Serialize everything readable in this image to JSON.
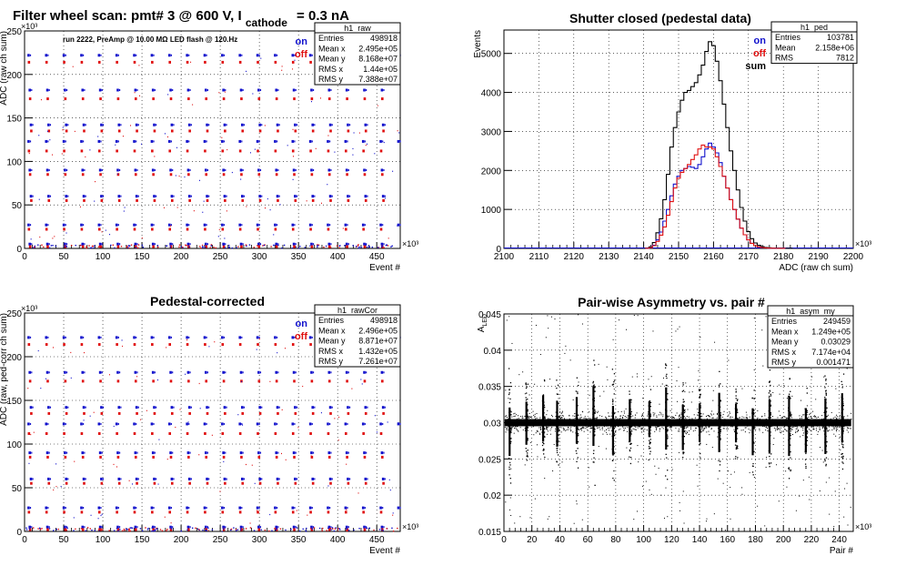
{
  "page": {
    "main_title_prefix": "Filter wheel scan: pmt#   3 @   600 V, I",
    "main_title_sub": "cathode",
    "main_title_suffix": "= 0.3 nA"
  },
  "chart_data": [
    {
      "id": "raw",
      "type": "scatter",
      "title": "",
      "annotation": "run 2222, PreAmp @ 10.00 MΩ LED flash @  120.Hz",
      "xlabel": "Event #",
      "ylabel": "ADC (raw ch sum)",
      "xlim": [
        0,
        480
      ],
      "ylim": [
        0,
        250
      ],
      "x_exponent": "×10³",
      "y_exponent": "×10³",
      "xticks": [
        0,
        50,
        100,
        150,
        200,
        250,
        300,
        350,
        400,
        450
      ],
      "yticks": [
        0,
        50,
        100,
        150,
        200,
        250
      ],
      "grid": true,
      "legend": [
        {
          "label": "on",
          "color": "#1010cc"
        },
        {
          "label": "off",
          "color": "#e01010"
        }
      ],
      "stats": {
        "name": "h1_raw",
        "rows": [
          [
            "Entries",
            "498918"
          ],
          [
            "Mean x",
            "2.495e+05"
          ],
          [
            "Mean y",
            "8.168e+07"
          ],
          [
            "RMS x",
            "1.44e+05"
          ],
          [
            "RMS y",
            "7.388e+07"
          ]
        ]
      },
      "levels_on": [
        222,
        182,
        142,
        123,
        90,
        60,
        27,
        5
      ],
      "levels_off": [
        214,
        172,
        135,
        112,
        85,
        55,
        22,
        2
      ],
      "period": 22.5,
      "start": 3
    },
    {
      "id": "ped",
      "type": "line",
      "title": "Shutter closed (pedestal data)",
      "xlabel": "ADC (raw ch sum)",
      "ylabel": "Events",
      "xlim": [
        2100,
        2200
      ],
      "ylim": [
        0,
        5600
      ],
      "x_exponent": "×10³",
      "xticks": [
        2100,
        2110,
        2120,
        2130,
        2140,
        2150,
        2160,
        2170,
        2180,
        2190,
        2200
      ],
      "yticks": [
        0,
        1000,
        2000,
        3000,
        4000,
        5000
      ],
      "grid": true,
      "legend": [
        {
          "label": "on",
          "color": "#1010cc"
        },
        {
          "label": "off",
          "color": "#e01010"
        },
        {
          "label": "sum",
          "color": "#000000"
        }
      ],
      "stats": {
        "name": "h1_ped",
        "rows": [
          [
            "Entries",
            "103781"
          ],
          [
            "Mean",
            "2.158e+06"
          ],
          [
            "RMS",
            "7812"
          ]
        ]
      },
      "series": [
        {
          "name": "sum",
          "color": "#000000",
          "x": [
            2141,
            2142,
            2143,
            2144,
            2145,
            2146,
            2147,
            2148,
            2149,
            2150,
            2151,
            2152,
            2153,
            2154,
            2155,
            2156,
            2157,
            2158,
            2159,
            2160,
            2161,
            2162,
            2163,
            2164,
            2165,
            2166,
            2167,
            2168,
            2169,
            2170,
            2171,
            2172,
            2173,
            2174,
            2175,
            2176,
            2177,
            2178,
            2179,
            2180,
            2181,
            2182
          ],
          "values": [
            5,
            40,
            150,
            400,
            760,
            1250,
            1900,
            2600,
            3100,
            3500,
            3800,
            4000,
            4050,
            4150,
            4250,
            4450,
            4700,
            5050,
            5300,
            5200,
            4800,
            4300,
            3700,
            3100,
            2500,
            2000,
            1500,
            1050,
            700,
            430,
            250,
            140,
            80,
            45,
            25,
            15,
            10,
            6,
            4,
            3,
            2,
            1
          ]
        },
        {
          "name": "on",
          "color": "#1010cc",
          "x": [
            2141,
            2142,
            2143,
            2144,
            2145,
            2146,
            2147,
            2148,
            2149,
            2150,
            2151,
            2152,
            2153,
            2154,
            2155,
            2156,
            2157,
            2158,
            2159,
            2160,
            2161,
            2162,
            2163,
            2164,
            2165,
            2166,
            2167,
            2168,
            2169,
            2170,
            2171,
            2172,
            2173,
            2174,
            2175,
            2176,
            2177,
            2178,
            2179,
            2180
          ],
          "values": [
            2,
            20,
            80,
            220,
            420,
            700,
            1000,
            1350,
            1650,
            1850,
            2000,
            2050,
            2100,
            2080,
            2050,
            2150,
            2350,
            2550,
            2700,
            2600,
            2450,
            2200,
            1850,
            1550,
            1250,
            1000,
            750,
            520,
            350,
            220,
            130,
            70,
            40,
            22,
            12,
            8,
            5,
            3,
            2,
            1
          ]
        },
        {
          "name": "off",
          "color": "#e01010",
          "x": [
            2141,
            2142,
            2143,
            2144,
            2145,
            2146,
            2147,
            2148,
            2149,
            2150,
            2151,
            2152,
            2153,
            2154,
            2155,
            2156,
            2157,
            2158,
            2159,
            2160,
            2161,
            2162,
            2163,
            2164,
            2165,
            2166,
            2167,
            2168,
            2169,
            2170,
            2171,
            2172,
            2173,
            2174,
            2175,
            2176,
            2177,
            2178,
            2179,
            2180
          ],
          "values": [
            3,
            20,
            70,
            180,
            340,
            550,
            850,
            1200,
            1550,
            1800,
            1950,
            2050,
            2150,
            2280,
            2400,
            2550,
            2650,
            2600,
            2600,
            2550,
            2350,
            2100,
            1850,
            1550,
            1250,
            1000,
            750,
            520,
            350,
            220,
            130,
            70,
            40,
            22,
            12,
            8,
            5,
            3,
            2,
            1
          ]
        }
      ]
    },
    {
      "id": "rawcor",
      "type": "scatter",
      "title": "Pedestal-corrected",
      "xlabel": "Event #",
      "ylabel": "ADC (raw, ped-corr ch sum)",
      "xlim": [
        0,
        480
      ],
      "ylim": [
        0,
        250
      ],
      "x_exponent": "×10³",
      "y_exponent": "×10³",
      "xticks": [
        0,
        50,
        100,
        150,
        200,
        250,
        300,
        350,
        400,
        450
      ],
      "yticks": [
        0,
        50,
        100,
        150,
        200,
        250
      ],
      "grid": true,
      "legend": [
        {
          "label": "on",
          "color": "#1010cc"
        },
        {
          "label": "off",
          "color": "#e01010"
        }
      ],
      "stats": {
        "name": "h1_rawCor",
        "rows": [
          [
            "Entries",
            "498918"
          ],
          [
            "Mean x",
            "2.496e+05"
          ],
          [
            "Mean y",
            "8.871e+07"
          ],
          [
            "RMS x",
            "1.432e+05"
          ],
          [
            "RMS y",
            "7.261e+07"
          ]
        ]
      },
      "levels_on": [
        222,
        182,
        142,
        123,
        90,
        60,
        27,
        5
      ],
      "levels_off": [
        214,
        172,
        135,
        112,
        85,
        55,
        22,
        2
      ],
      "period": 22.5,
      "start": 3
    },
    {
      "id": "asym",
      "type": "scatter",
      "title": "Pair-wise Asymmetry vs. pair #",
      "xlabel": "Pair #",
      "ylabel": "A",
      "ylabel_sub": "LED",
      "xlim": [
        0,
        250
      ],
      "ylim": [
        0.015,
        0.045
      ],
      "x_exponent": "×10³",
      "xticks": [
        0,
        20,
        40,
        60,
        80,
        100,
        120,
        140,
        160,
        180,
        200,
        220,
        240
      ],
      "yticks": [
        0.015,
        0.02,
        0.025,
        0.03,
        0.035,
        0.04,
        0.045
      ],
      "grid": true,
      "stats": {
        "name": "h1_asym_my",
        "rows": [
          [
            "Entries",
            "249459"
          ],
          [
            "Mean x",
            "1.249e+05"
          ],
          [
            "Mean y",
            "0.03029"
          ],
          [
            "RMS x",
            "7.174e+04"
          ],
          [
            "RMS y",
            "0.001471"
          ]
        ]
      },
      "band_center": 0.03,
      "band_halfwidth": 0.0009,
      "spikes": [
        4,
        16,
        28,
        38,
        52,
        64,
        78,
        90,
        104,
        116,
        128,
        140,
        154,
        166,
        178,
        190,
        204,
        216,
        230,
        242
      ]
    }
  ]
}
